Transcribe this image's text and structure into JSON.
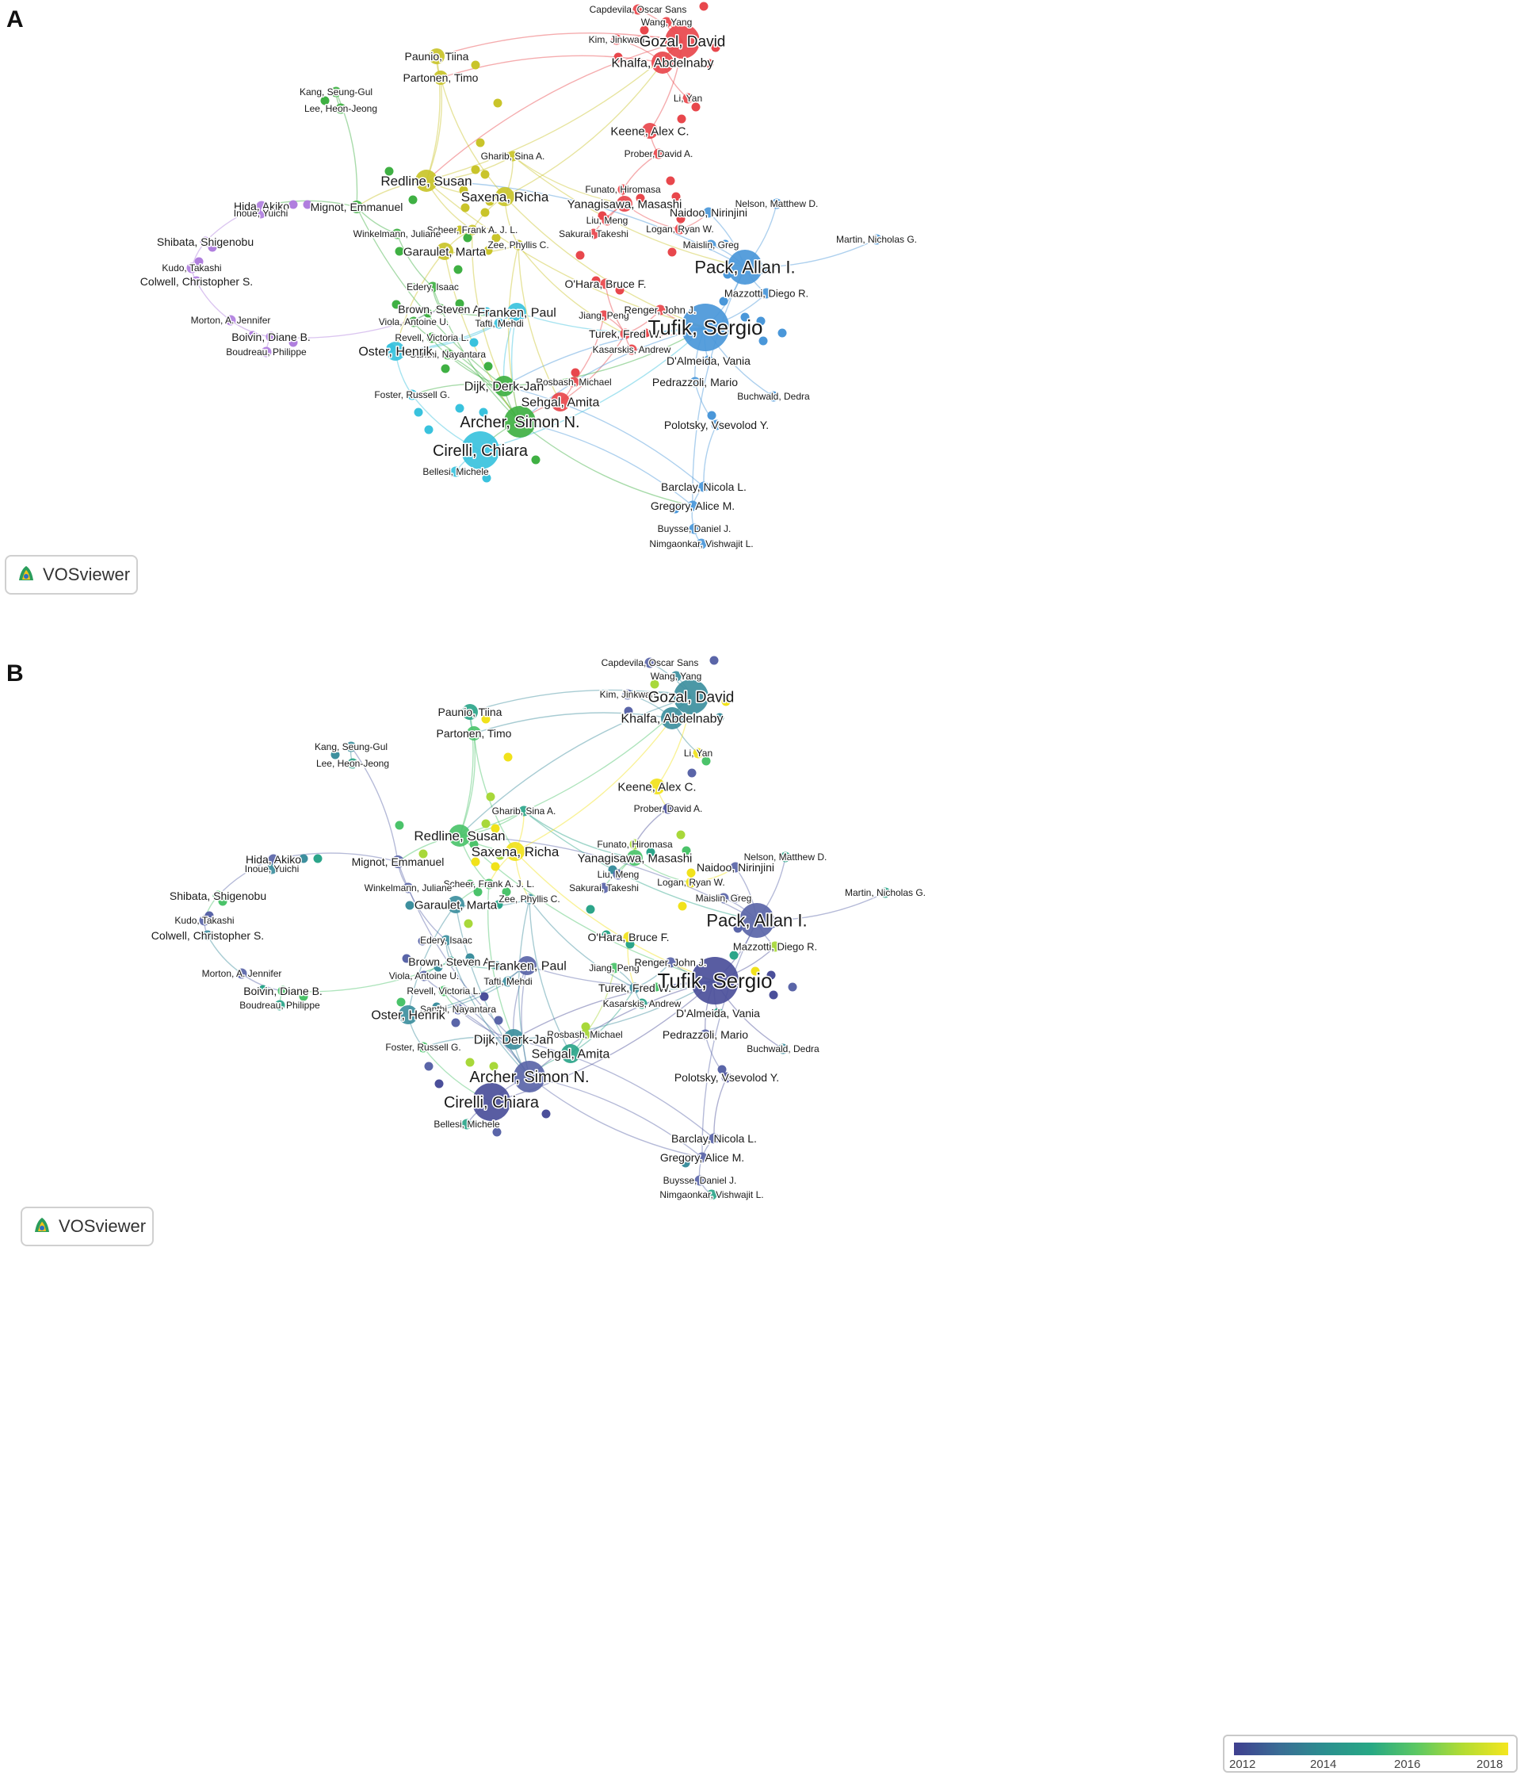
{
  "panels": {
    "a_letter": "A",
    "b_letter": "B"
  },
  "badge": {
    "text": "VOSviewer",
    "icon": "vosviewer-logo-icon"
  },
  "legend": {
    "ticks": [
      "2012",
      "2014",
      "2016",
      "2018"
    ],
    "gradient": [
      "#3f3f8f",
      "#3a6d95",
      "#2b8f8f",
      "#27a884",
      "#5cc863",
      "#b2dc33",
      "#f4e61f"
    ]
  },
  "cluster_colors": {
    "red": "#e8474c",
    "blue": "#4a97d9",
    "green": "#3fb043",
    "yellow": "#c9c42a",
    "cyan": "#39c2dd",
    "purple": "#b07fde"
  },
  "year_colors": {
    "y2012": "#4b4f9a",
    "y2013": "#5a65a8",
    "y2014": "#3d8f9e",
    "y2015": "#2ca58a",
    "y2016": "#4bc36a",
    "y2017": "#a8d83a",
    "y2018": "#f1e21b"
  },
  "authors": [
    {
      "id": "capdevila",
      "label": "Capdevila, Oscar Sans",
      "cluster": "red",
      "year": "y2013",
      "a": [
        805,
        12
      ],
      "b": [
        820,
        836
      ]
    },
    {
      "id": "wang",
      "label": "Wang, Yang",
      "cluster": "red",
      "year": "y2014",
      "a": [
        841,
        28
      ],
      "b": [
        853,
        853
      ]
    },
    {
      "id": "kim",
      "label": "Kim, Jinkwan",
      "cluster": "red",
      "year": "y2013",
      "a": [
        778,
        50
      ],
      "b": [
        792,
        876
      ]
    },
    {
      "id": "gozal",
      "label": "Gozal, David",
      "cluster": "red",
      "year": "y2014",
      "a": [
        861,
        52
      ],
      "b": [
        872,
        879
      ]
    },
    {
      "id": "khalfa",
      "label": "Khalfa, Abdelnaby",
      "cluster": "red",
      "year": "y2014",
      "a": [
        836,
        79
      ],
      "b": [
        848,
        906
      ]
    },
    {
      "id": "liyan",
      "label": "Li, Yan",
      "cluster": "red",
      "year": "y2018",
      "a": [
        868,
        124
      ],
      "b": [
        881,
        950
      ]
    },
    {
      "id": "keene",
      "label": "Keene, Alex C.",
      "cluster": "red",
      "year": "y2018",
      "a": [
        820,
        165
      ],
      "b": [
        829,
        992
      ]
    },
    {
      "id": "prober",
      "label": "Prober, David A.",
      "cluster": "red",
      "year": "y2012",
      "a": [
        831,
        194
      ],
      "b": [
        843,
        1020
      ]
    },
    {
      "id": "funato",
      "label": "Funato, Hiromasa",
      "cluster": "red",
      "year": "y2017",
      "a": [
        786,
        239
      ],
      "b": [
        801,
        1065
      ]
    },
    {
      "id": "yanagisawa",
      "label": "Yanagisawa, Masashi",
      "cluster": "red",
      "year": "y2016",
      "a": [
        788,
        257
      ],
      "b": [
        801,
        1082
      ]
    },
    {
      "id": "liumeng",
      "label": "Liu, Meng",
      "cluster": "red",
      "year": "y2013",
      "a": [
        766,
        278
      ],
      "b": [
        780,
        1103
      ]
    },
    {
      "id": "sakurai",
      "label": "Sakurai, Takeshi",
      "cluster": "red",
      "year": "y2013",
      "a": [
        749,
        295
      ],
      "b": [
        762,
        1120
      ]
    },
    {
      "id": "logan",
      "label": "Logan, Ryan W.",
      "cluster": "red",
      "year": "y2018",
      "a": [
        858,
        289
      ],
      "b": [
        872,
        1113
      ]
    },
    {
      "id": "ohara",
      "label": "O'Hara, Bruce F.",
      "cluster": "red",
      "year": "y2018",
      "a": [
        764,
        358
      ],
      "b": [
        793,
        1182
      ]
    },
    {
      "id": "jiang",
      "label": "Jiang, Peng",
      "cluster": "red",
      "year": "y2016",
      "a": [
        762,
        398
      ],
      "b": [
        775,
        1221
      ]
    },
    {
      "id": "renger",
      "label": "Renger, John J.",
      "cluster": "red",
      "year": "y2013",
      "a": [
        833,
        391
      ],
      "b": [
        846,
        1214
      ]
    },
    {
      "id": "turek",
      "label": "Turek, Fred W.",
      "cluster": "red",
      "year": "y2014",
      "a": [
        789,
        421
      ],
      "b": [
        801,
        1246
      ]
    },
    {
      "id": "kasarskis",
      "label": "Kasarskis, Andrew",
      "cluster": "red",
      "year": "y2015",
      "a": [
        797,
        441
      ],
      "b": [
        810,
        1266
      ]
    },
    {
      "id": "rosbash",
      "label": "Rosbash, Michael",
      "cluster": "red",
      "year": "y2017",
      "a": [
        724,
        482
      ],
      "b": [
        738,
        1305
      ]
    },
    {
      "id": "sehgal",
      "label": "Sehgal, Amita",
      "cluster": "red",
      "year": "y2015",
      "a": [
        707,
        507
      ],
      "b": [
        720,
        1329
      ]
    },
    {
      "id": "nelson",
      "label": "Nelson, Matthew D.",
      "cluster": "blue",
      "year": "y2015",
      "a": [
        980,
        257
      ],
      "b": [
        991,
        1081
      ]
    },
    {
      "id": "naidoo",
      "label": "Naidoo, Nirinjini",
      "cluster": "blue",
      "year": "y2013",
      "a": [
        894,
        268
      ],
      "b": [
        928,
        1094
      ]
    },
    {
      "id": "maislin",
      "label": "Maislin, Greg",
      "cluster": "blue",
      "year": "y2013",
      "a": [
        897,
        309
      ],
      "b": [
        913,
        1133
      ]
    },
    {
      "id": "martin",
      "label": "Martin, Nicholas G.",
      "cluster": "blue",
      "year": "y2015",
      "a": [
        1106,
        302
      ],
      "b": [
        1117,
        1126
      ]
    },
    {
      "id": "pack",
      "label": "Pack, Allan I.",
      "cluster": "blue",
      "year": "y2013",
      "a": [
        940,
        337
      ],
      "b": [
        955,
        1161
      ]
    },
    {
      "id": "mazzotti",
      "label": "Mazzotti, Diego R.",
      "cluster": "blue",
      "year": "y2017",
      "a": [
        967,
        370
      ],
      "b": [
        978,
        1194
      ]
    },
    {
      "id": "tufik",
      "label": "Tufik, Sergio",
      "cluster": "blue",
      "year": "y2012",
      "a": [
        890,
        413
      ],
      "b": [
        902,
        1237
      ]
    },
    {
      "id": "dalmeida",
      "label": "D'Almeida, Vania",
      "cluster": "blue",
      "year": "y2015",
      "a": [
        894,
        455
      ],
      "b": [
        906,
        1278
      ]
    },
    {
      "id": "pedrazzoli",
      "label": "Pedrazzoli, Mario",
      "cluster": "blue",
      "year": "y2013",
      "a": [
        877,
        482
      ],
      "b": [
        890,
        1305
      ]
    },
    {
      "id": "buchwald",
      "label": "Buchwald, Dedra",
      "cluster": "blue",
      "year": "y2014",
      "a": [
        976,
        500
      ],
      "b": [
        988,
        1323
      ]
    },
    {
      "id": "polotsky",
      "label": "Polotsky, Vsevolod Y.",
      "cluster": "blue",
      "year": "y2012",
      "a": [
        904,
        536
      ],
      "b": [
        917,
        1359
      ]
    },
    {
      "id": "barclay",
      "label": "Barclay, Nicola L.",
      "cluster": "blue",
      "year": "y2013",
      "a": [
        888,
        614
      ],
      "b": [
        901,
        1436
      ]
    },
    {
      "id": "gregory",
      "label": "Gregory, Alice M.",
      "cluster": "blue",
      "year": "y2013",
      "a": [
        874,
        638
      ],
      "b": [
        886,
        1460
      ]
    },
    {
      "id": "buysse",
      "label": "Buysse, Daniel J.",
      "cluster": "blue",
      "year": "y2013",
      "a": [
        876,
        667
      ],
      "b": [
        883,
        1489
      ]
    },
    {
      "id": "nimgaonkar",
      "label": "Nimgaonkar, Vishwajit L.",
      "cluster": "blue",
      "year": "y2015",
      "a": [
        885,
        686
      ],
      "b": [
        898,
        1507
      ]
    },
    {
      "id": "paunio",
      "label": "Paunio, Tiina",
      "cluster": "yellow",
      "year": "y2015",
      "a": [
        551,
        71
      ],
      "b": [
        593,
        898
      ]
    },
    {
      "id": "partonen",
      "label": "Partonen, Timo",
      "cluster": "yellow",
      "year": "y2016",
      "a": [
        556,
        98
      ],
      "b": [
        598,
        925
      ]
    },
    {
      "id": "gharib",
      "label": "Gharib, Sina A.",
      "cluster": "yellow",
      "year": "y2015",
      "a": [
        647,
        197
      ],
      "b": [
        661,
        1023
      ]
    },
    {
      "id": "redline",
      "label": "Redline, Susan",
      "cluster": "yellow",
      "year": "y2016",
      "a": [
        538,
        228
      ],
      "b": [
        580,
        1054
      ]
    },
    {
      "id": "saxena",
      "label": "Saxena, Richa",
      "cluster": "yellow",
      "year": "y2018",
      "a": [
        637,
        248
      ],
      "b": [
        650,
        1074
      ]
    },
    {
      "id": "scheer",
      "label": "Scheer, Frank A. J. L.",
      "cluster": "yellow",
      "year": "y2016",
      "a": [
        596,
        290
      ],
      "b": [
        617,
        1115
      ]
    },
    {
      "id": "zee",
      "label": "Zee, Phyllis C.",
      "cluster": "yellow",
      "year": "y2014",
      "a": [
        654,
        309
      ],
      "b": [
        668,
        1134
      ]
    },
    {
      "id": "garaulet",
      "label": "Garaulet, Marta",
      "cluster": "yellow",
      "year": "y2014",
      "a": [
        561,
        317
      ],
      "b": [
        575,
        1141
      ]
    },
    {
      "id": "kang",
      "label": "Kang, Seung-Gul",
      "cluster": "green",
      "year": "y2014",
      "a": [
        424,
        116
      ],
      "b": [
        443,
        942
      ]
    },
    {
      "id": "leehj",
      "label": "Lee, Heon-Jeong",
      "cluster": "green",
      "year": "y2015",
      "a": [
        430,
        137
      ],
      "b": [
        445,
        963
      ]
    },
    {
      "id": "mignot",
      "label": "Mignot, Emmanuel",
      "cluster": "green",
      "year": "y2013",
      "a": [
        450,
        261
      ],
      "b": [
        502,
        1087
      ]
    },
    {
      "id": "winkelmann",
      "label": "Winkelmann, Juliane",
      "cluster": "green",
      "year": "y2013",
      "a": [
        501,
        295
      ],
      "b": [
        515,
        1120
      ]
    },
    {
      "id": "edery",
      "label": "Edery, Isaac",
      "cluster": "green",
      "year": "y2014",
      "a": [
        546,
        362
      ],
      "b": [
        563,
        1186
      ]
    },
    {
      "id": "brown",
      "label": "Brown, Steven A.",
      "cluster": "green",
      "year": "y2015",
      "a": [
        556,
        390
      ],
      "b": [
        569,
        1213
      ]
    },
    {
      "id": "viola",
      "label": "Viola, Antoine U.",
      "cluster": "green",
      "year": "y2013",
      "a": [
        522,
        406
      ],
      "b": [
        535,
        1231
      ]
    },
    {
      "id": "revell",
      "label": "Revell, Victoria L.",
      "cluster": "green",
      "year": "y2016",
      "a": [
        545,
        426
      ],
      "b": [
        560,
        1250
      ]
    },
    {
      "id": "santhi",
      "label": "Santhi, Nayantara",
      "cluster": "green",
      "year": "y2013",
      "a": [
        565,
        447
      ],
      "b": [
        578,
        1273
      ]
    },
    {
      "id": "dijk",
      "label": "Dijk, Derk-Jan",
      "cluster": "green",
      "year": "y2014",
      "a": [
        636,
        487
      ],
      "b": [
        648,
        1311
      ]
    },
    {
      "id": "archer",
      "label": "Archer, Simon N.",
      "cluster": "green",
      "year": "y2013",
      "a": [
        656,
        532
      ],
      "b": [
        668,
        1358
      ]
    },
    {
      "id": "franken",
      "label": "Franken, Paul",
      "cluster": "cyan",
      "year": "y2013",
      "a": [
        652,
        394
      ],
      "b": [
        665,
        1218
      ]
    },
    {
      "id": "tafti",
      "label": "Tafti, Mehdi",
      "cluster": "cyan",
      "year": "y2014",
      "a": [
        630,
        408
      ],
      "b": [
        641,
        1238
      ]
    },
    {
      "id": "oster",
      "label": "Oster, Henrik",
      "cluster": "cyan",
      "year": "y2014",
      "a": [
        499,
        443
      ],
      "b": [
        515,
        1280
      ]
    },
    {
      "id": "foster",
      "label": "Foster, Russell G.",
      "cluster": "cyan",
      "year": "y2016",
      "a": [
        520,
        498
      ],
      "b": [
        534,
        1321
      ]
    },
    {
      "id": "cirelli",
      "label": "Cirelli, Chiara",
      "cluster": "cyan",
      "year": "y2012",
      "a": [
        606,
        568
      ],
      "b": [
        620,
        1390
      ]
    },
    {
      "id": "bellesi",
      "label": "Bellesi, Michele",
      "cluster": "cyan",
      "year": "y2015",
      "a": [
        575,
        595
      ],
      "b": [
        589,
        1418
      ]
    },
    {
      "id": "hida",
      "label": "Hida, Akiko",
      "cluster": "purple",
      "year": "y2013",
      "a": [
        330,
        260
      ],
      "b": [
        345,
        1084
      ]
    },
    {
      "id": "inoue",
      "label": "Inoue, Yuichi",
      "cluster": "purple",
      "year": "y2014",
      "a": [
        329,
        269
      ],
      "b": [
        343,
        1096
      ]
    },
    {
      "id": "shibata",
      "label": "Shibata, Shigenobu",
      "cluster": "purple",
      "year": "y2016",
      "a": [
        259,
        305
      ],
      "b": [
        275,
        1130
      ]
    },
    {
      "id": "kudo",
      "label": "Kudo, Takashi",
      "cluster": "purple",
      "year": "y2013",
      "a": [
        242,
        338
      ],
      "b": [
        258,
        1161
      ]
    },
    {
      "id": "colwell",
      "label": "Colwell, Christopher S.",
      "cluster": "purple",
      "year": "y2014",
      "a": [
        248,
        355
      ],
      "b": [
        262,
        1180
      ]
    },
    {
      "id": "morton",
      "label": "Morton, A. Jennifer",
      "cluster": "purple",
      "year": "y2013",
      "a": [
        291,
        404
      ],
      "b": [
        305,
        1228
      ]
    },
    {
      "id": "boivin",
      "label": "Boivin, Diane B.",
      "cluster": "purple",
      "year": "y2016",
      "a": [
        342,
        425
      ],
      "b": [
        357,
        1250
      ]
    },
    {
      "id": "boudreau",
      "label": "Boudreau, Philippe",
      "cluster": "purple",
      "year": "y2015",
      "a": [
        336,
        444
      ],
      "b": [
        353,
        1268
      ]
    }
  ]
}
